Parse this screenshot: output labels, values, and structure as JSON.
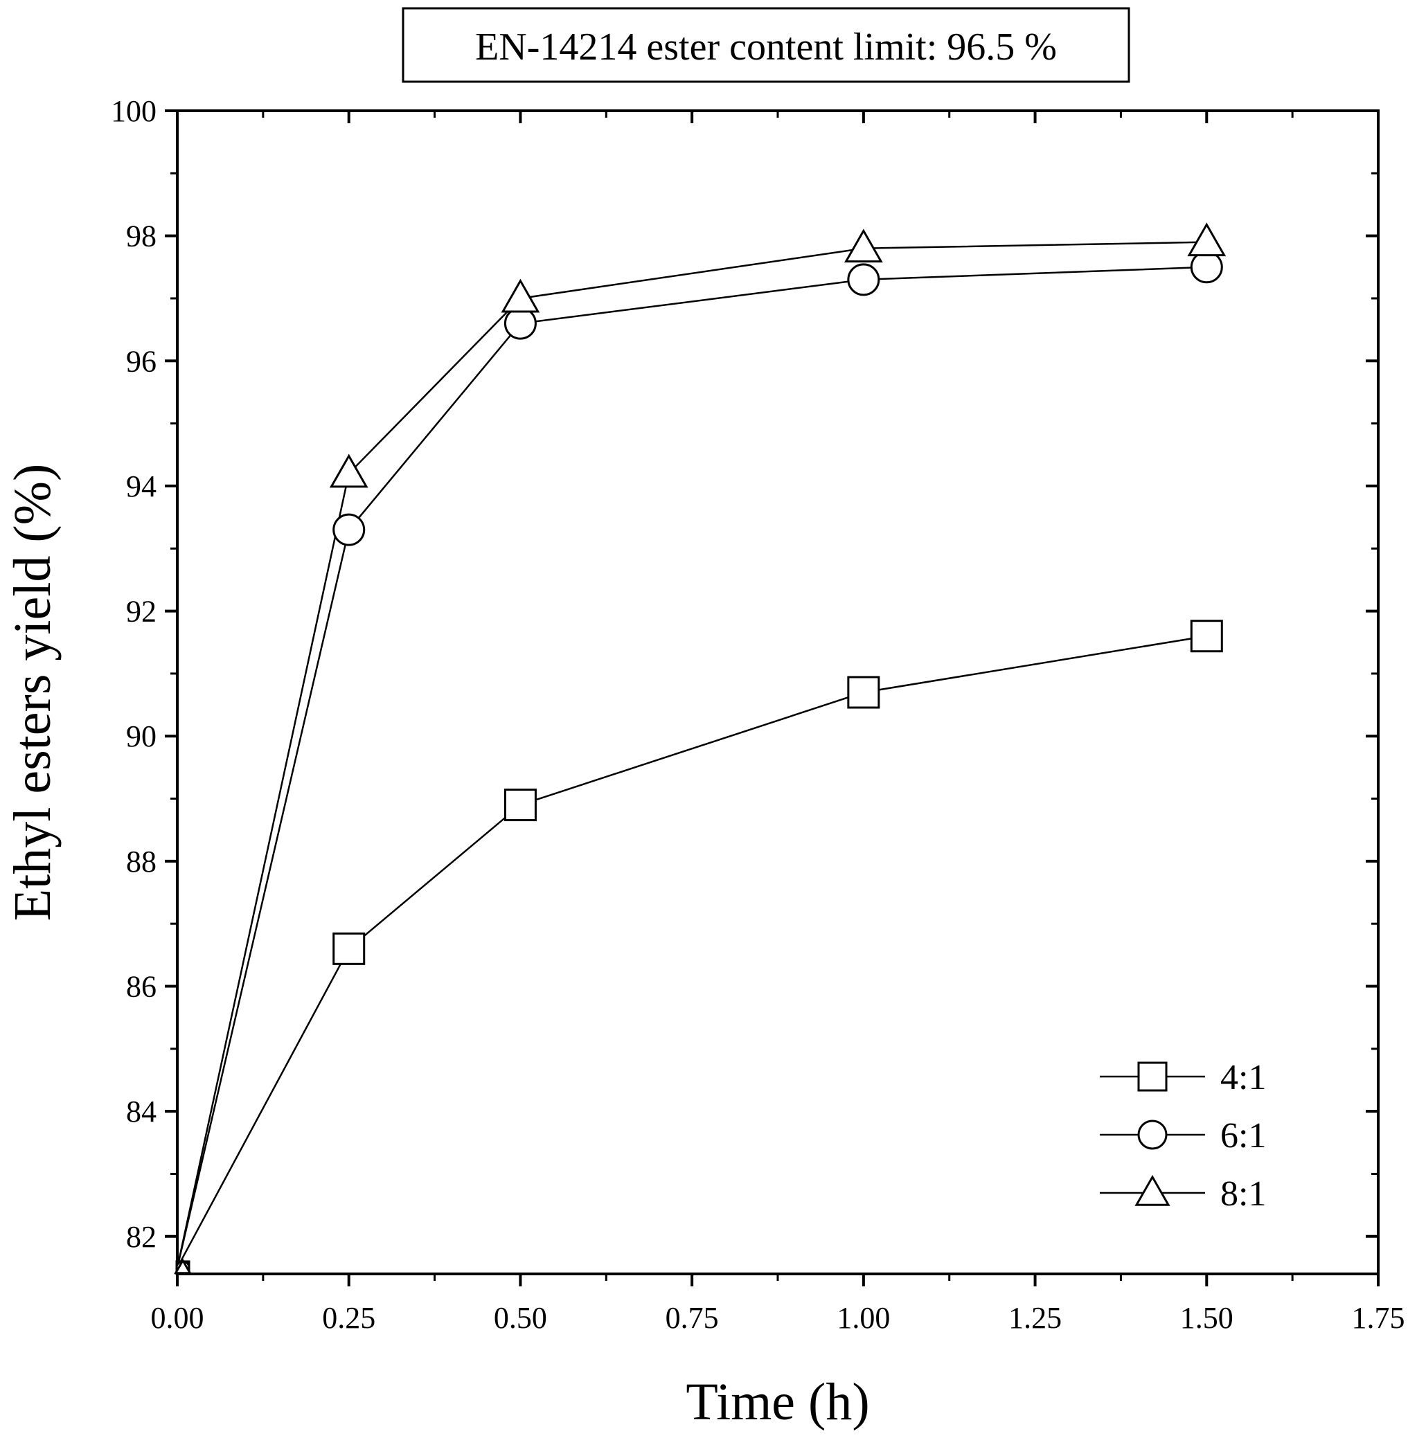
{
  "chart_data": {
    "type": "line",
    "title": "EN-14214 ester content limit: 96.5 %",
    "xlabel": "Time (h)",
    "ylabel": "Ethyl esters yield (%)",
    "xlim": [
      0,
      1.75
    ],
    "ylim": [
      81.4,
      100
    ],
    "x_ticks": [
      0,
      0.25,
      0.5,
      0.75,
      1.0,
      1.25,
      1.5,
      1.75
    ],
    "x_tick_labels": [
      "0.00",
      "0.25",
      "0.50",
      "0.75",
      "1.00",
      "1.25",
      "1.50",
      "1.75"
    ],
    "y_ticks": [
      82,
      84,
      86,
      88,
      90,
      92,
      94,
      96,
      98,
      100
    ],
    "y_tick_labels": [
      "82",
      "84",
      "86",
      "88",
      "90",
      "92",
      "94",
      "96",
      "98",
      "100"
    ],
    "grid": false,
    "legend_position": "bottom-right",
    "x": [
      0,
      0.25,
      0.5,
      1.0,
      1.5
    ],
    "series": [
      {
        "name": "4:1",
        "marker": "square",
        "values": [
          81.5,
          86.6,
          88.9,
          90.7,
          91.6
        ]
      },
      {
        "name": "6:1",
        "marker": "circle",
        "values": [
          81.5,
          93.3,
          96.6,
          97.3,
          97.5
        ]
      },
      {
        "name": "8:1",
        "marker": "triangle",
        "values": [
          81.5,
          94.2,
          97.0,
          97.8,
          97.9
        ]
      }
    ]
  }
}
